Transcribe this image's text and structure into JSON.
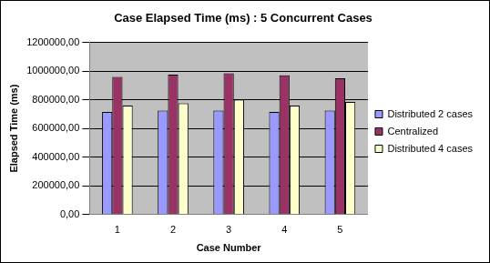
{
  "chart_data": {
    "type": "bar",
    "title": "Case Elapsed Time (ms) : 5 Concurrent Cases",
    "x_label": "Case Number",
    "y_label": "Elapsed Time (ms)",
    "categories": [
      "1",
      "2",
      "3",
      "4",
      "5"
    ],
    "series": [
      {
        "name": "Distributed 2 cases",
        "color": "#9999ff",
        "values": [
          715000,
          725000,
          725000,
          715000,
          725000
        ]
      },
      {
        "name": "Centralized",
        "color": "#993366",
        "values": [
          960000,
          975000,
          985000,
          970000,
          950000
        ]
      },
      {
        "name": "Distributed 4 cases",
        "color": "#ffffcc",
        "values": [
          760000,
          775000,
          800000,
          760000,
          785000
        ]
      }
    ],
    "ylim": [
      0,
      1200000
    ],
    "yticks": [
      {
        "value": 0,
        "label": "0,00"
      },
      {
        "value": 200000,
        "label": "200000,00"
      },
      {
        "value": 400000,
        "label": "400000,00"
      },
      {
        "value": 600000,
        "label": "600000,00"
      },
      {
        "value": 800000,
        "label": "800000,00"
      },
      {
        "value": 1000000,
        "label": "1000000,00"
      },
      {
        "value": 1200000,
        "label": "1200000,00"
      }
    ],
    "grid": true,
    "legend": "right"
  }
}
